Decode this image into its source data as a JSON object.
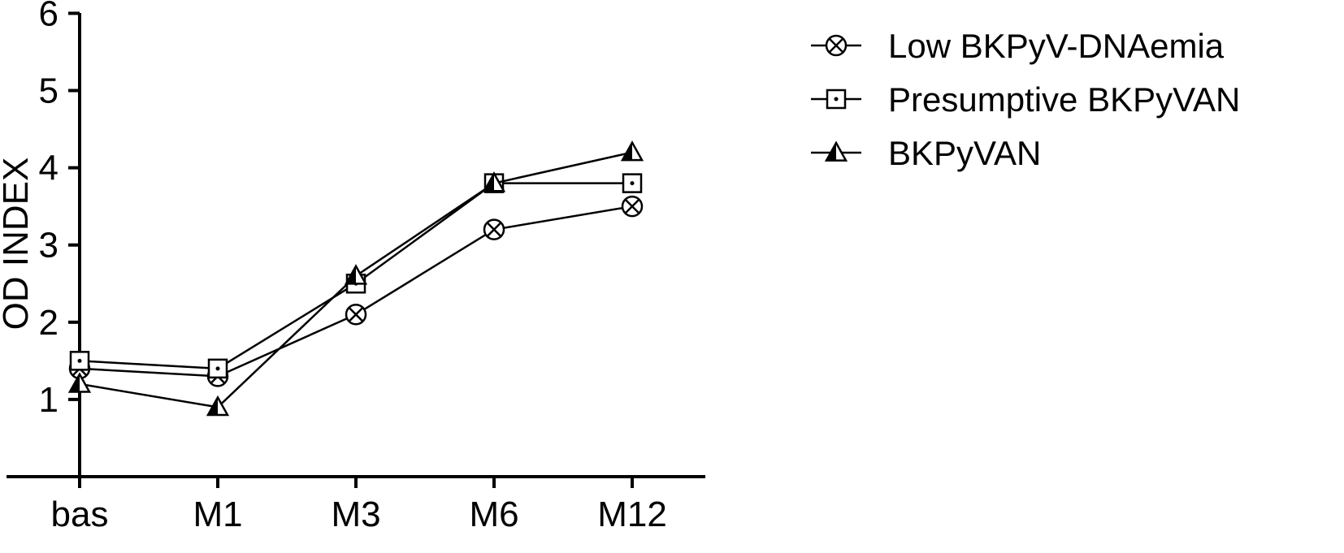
{
  "chart_data": {
    "type": "line",
    "categories": [
      "bas",
      "M1",
      "M3",
      "M6",
      "M12"
    ],
    "ylabel": "OD INDEX",
    "xlabel": "",
    "ylim": [
      0,
      6
    ],
    "yticks": [
      1,
      2,
      3,
      4,
      5,
      6
    ],
    "grid": false,
    "legend_position": "top-right",
    "series": [
      {
        "name": "Low BKPyV-DNAemia",
        "marker": "circle-x",
        "values": [
          1.4,
          1.3,
          2.1,
          3.2,
          3.5
        ]
      },
      {
        "name": "Presumptive BKPyVAN",
        "marker": "square-dot",
        "values": [
          1.5,
          1.4,
          2.5,
          3.8,
          3.8
        ]
      },
      {
        "name": "BKPyVAN",
        "marker": "triangle-half",
        "values": [
          1.2,
          0.9,
          2.6,
          3.8,
          4.2
        ]
      }
    ]
  }
}
